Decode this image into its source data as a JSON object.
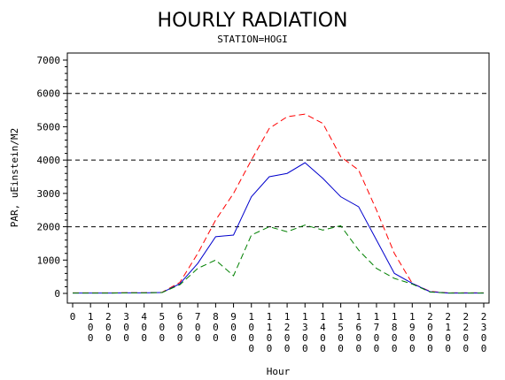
{
  "chart_data": {
    "type": "line",
    "title": "HOURLY RADIATION",
    "subtitle": "STATION=HOGI",
    "xlabel": "Hour",
    "ylabel": "PAR, uEinstein/M2",
    "x": [
      0,
      100,
      200,
      300,
      400,
      500,
      600,
      700,
      800,
      900,
      1000,
      1100,
      1200,
      1300,
      1400,
      1500,
      1600,
      1700,
      1800,
      1900,
      2000,
      2100,
      2200,
      2300
    ],
    "x_tick_labels": [
      "0",
      "100",
      "200",
      "300",
      "400",
      "500",
      "600",
      "700",
      "800",
      "900",
      "1000",
      "1100",
      "1200",
      "1300",
      "1400",
      "1500",
      "1600",
      "1700",
      "1800",
      "1900",
      "2000",
      "2100",
      "2200",
      "2300"
    ],
    "ylim": [
      0,
      7000
    ],
    "y_ticks": [
      0,
      1000,
      2000,
      3000,
      4000,
      5000,
      6000,
      7000
    ],
    "y_tick_labels": [
      "0",
      "1000",
      "2000",
      "3000",
      "4000",
      "5000",
      "6000",
      "7000"
    ],
    "reference_lines": [
      2000,
      4000,
      6000
    ],
    "series": [
      {
        "style": "dashed",
        "color": "#ff0000",
        "values": [
          15,
          15,
          15,
          20,
          20,
          30,
          330,
          1200,
          2200,
          3000,
          4000,
          4950,
          5300,
          5380,
          5100,
          4100,
          3700,
          2500,
          1200,
          300,
          60,
          15,
          15,
          15
        ]
      },
      {
        "style": "solid",
        "color": "#0000cc",
        "values": [
          10,
          10,
          10,
          15,
          15,
          25,
          290,
          900,
          1700,
          1750,
          2900,
          3500,
          3600,
          3920,
          3450,
          2900,
          2600,
          1600,
          600,
          300,
          50,
          10,
          10,
          10
        ]
      },
      {
        "style": "dashed",
        "color": "#008000",
        "values": [
          10,
          10,
          10,
          15,
          15,
          25,
          260,
          750,
          1000,
          530,
          1750,
          2000,
          1850,
          2050,
          1900,
          2030,
          1300,
          750,
          450,
          280,
          40,
          10,
          10,
          10
        ]
      }
    ]
  }
}
